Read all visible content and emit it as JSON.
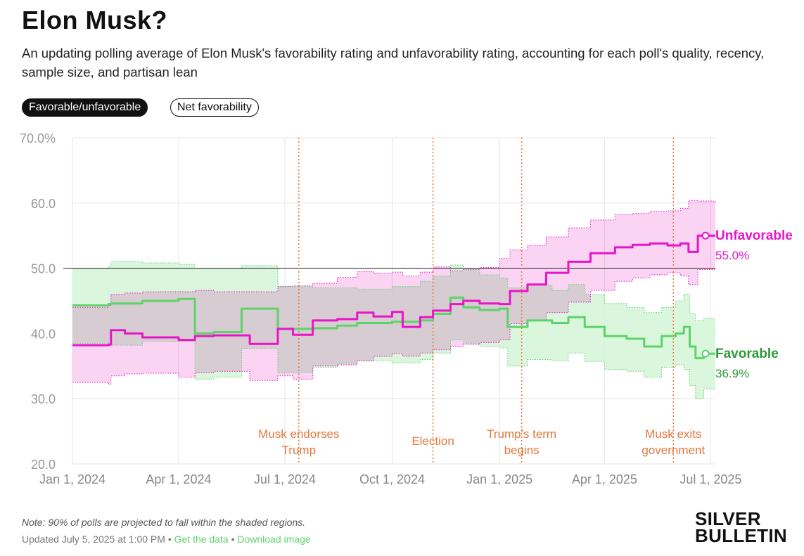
{
  "header": {
    "title": "Elon Musk?",
    "subtitle": "An updating polling average of Elon Musk's favorability rating and unfavorability rating, accounting for each poll's quality, recency, sample size, and partisan lean"
  },
  "toggles": [
    {
      "label": "Favorable/unfavorable",
      "active": true
    },
    {
      "label": "Net favorability",
      "active": false
    }
  ],
  "footer": {
    "note": "Note: 90% of polls are projected to fall within the shaded regions.",
    "updated": "Updated July 5, 2025 at 1:00 PM",
    "get_data": "Get the data",
    "download_image": "Download image",
    "separator": "•",
    "brand_line1": "SILVER",
    "brand_line2": "BULLETIN"
  },
  "colors": {
    "favorable": "#5dd36a",
    "favorable_dark": "#2b9a36",
    "favorable_band": "#d6f5d8",
    "unfavorable": "#e815c8",
    "unfavorable_band": "#f9c2f0",
    "overlap_band": "#dcb8dc",
    "annotation": "#e8763a",
    "grid": "#e6e6e6",
    "axis_text": "#999999"
  },
  "chart_data": {
    "type": "line",
    "ylim": [
      20,
      70
    ],
    "yticks": [
      {
        "value": 70,
        "label": "70.0%"
      },
      {
        "value": 60,
        "label": "60.0"
      },
      {
        "value": 50,
        "label": "50.0"
      },
      {
        "value": 40,
        "label": "40.0"
      },
      {
        "value": 30,
        "label": "30.0"
      },
      {
        "value": 20,
        "label": "20.0"
      }
    ],
    "xlim": [
      "2024-01-01",
      "2025-07-05"
    ],
    "xticks": [
      {
        "date": "2024-01-01",
        "label": "Jan 1, 2024"
      },
      {
        "date": "2024-04-01",
        "label": "Apr 1, 2024"
      },
      {
        "date": "2024-07-01",
        "label": "Jul 1, 2024"
      },
      {
        "date": "2024-10-01",
        "label": "Oct 1, 2024"
      },
      {
        "date": "2025-01-01",
        "label": "Jan 1, 2025"
      },
      {
        "date": "2025-04-01",
        "label": "Apr 1, 2025"
      },
      {
        "date": "2025-07-01",
        "label": "Jul 1, 2025"
      }
    ],
    "reference_line": 50,
    "annotations": [
      {
        "date": "2024-07-13",
        "lines": [
          "Musk endorses",
          "Trump"
        ]
      },
      {
        "date": "2024-11-05",
        "lines": [
          "Election"
        ]
      },
      {
        "date": "2025-01-20",
        "lines": [
          "Trump's term",
          "begins"
        ]
      },
      {
        "date": "2025-05-30",
        "lines": [
          "Musk exits",
          "government"
        ]
      }
    ],
    "series": [
      {
        "name": "Unfavorable",
        "end_label": "55.0%",
        "points": [
          [
            "2024-01-01",
            38.2,
            32.5,
            44.0
          ],
          [
            "2024-02-01",
            38.3,
            32.2,
            44.3
          ],
          [
            "2024-02-03",
            40.5,
            33.5,
            46.0
          ],
          [
            "2024-02-15",
            40.0,
            33.8,
            46.2
          ],
          [
            "2024-03-01",
            39.4,
            33.9,
            46.4
          ],
          [
            "2024-04-01",
            39.0,
            33.3,
            46.4
          ],
          [
            "2024-04-15",
            39.6,
            34.0,
            46.6
          ],
          [
            "2024-05-01",
            39.7,
            34.2,
            46.4
          ],
          [
            "2024-06-01",
            38.4,
            32.8,
            46.4
          ],
          [
            "2024-06-25",
            40.7,
            33.5,
            47.2
          ],
          [
            "2024-07-08",
            39.8,
            33.0,
            47.3
          ],
          [
            "2024-07-25",
            42.0,
            35.0,
            47.7
          ],
          [
            "2024-08-15",
            42.2,
            35.2,
            48.6
          ],
          [
            "2024-09-01",
            43.2,
            35.8,
            49.5
          ],
          [
            "2024-09-15",
            42.6,
            36.5,
            49.2
          ],
          [
            "2024-10-01",
            43.3,
            36.9,
            49.4
          ],
          [
            "2024-10-10",
            41.0,
            36.5,
            48.8
          ],
          [
            "2024-10-25",
            42.5,
            37.0,
            49.4
          ],
          [
            "2024-11-05",
            43.5,
            37.5,
            50.2
          ],
          [
            "2024-11-20",
            44.5,
            38.0,
            49.6
          ],
          [
            "2024-12-01",
            45.0,
            38.3,
            49.8
          ],
          [
            "2024-12-15",
            44.6,
            38.6,
            50.1
          ],
          [
            "2025-01-01",
            44.5,
            39.0,
            51.5
          ],
          [
            "2025-01-10",
            46.5,
            41.5,
            52.8
          ],
          [
            "2025-01-25",
            47.5,
            42.0,
            53.5
          ],
          [
            "2025-02-10",
            49.3,
            43.2,
            54.8
          ],
          [
            "2025-03-01",
            51.0,
            44.8,
            56.2
          ],
          [
            "2025-03-20",
            52.3,
            46.6,
            57.4
          ],
          [
            "2025-04-10",
            53.2,
            48.0,
            58.2
          ],
          [
            "2025-04-25",
            53.6,
            48.5,
            58.4
          ],
          [
            "2025-05-10",
            53.8,
            49.0,
            58.7
          ],
          [
            "2025-05-25",
            53.5,
            49.3,
            58.8
          ],
          [
            "2025-06-05",
            53.8,
            48.8,
            59.2
          ],
          [
            "2025-06-12",
            52.5,
            47.5,
            60.4
          ],
          [
            "2025-06-20",
            55.0,
            49.8,
            60.3
          ],
          [
            "2025-07-05",
            55.0,
            49.8,
            60.1
          ]
        ]
      },
      {
        "name": "Favorable",
        "end_label": "36.9%",
        "points": [
          [
            "2024-01-01",
            44.3,
            38.5,
            50.0
          ],
          [
            "2024-02-01",
            44.5,
            38.7,
            50.3
          ],
          [
            "2024-02-03",
            44.6,
            38.2,
            51.0
          ],
          [
            "2024-03-01",
            45.0,
            38.8,
            50.8
          ],
          [
            "2024-04-01",
            45.3,
            38.8,
            50.6
          ],
          [
            "2024-04-15",
            40.0,
            33.0,
            50.0
          ],
          [
            "2024-05-01",
            40.2,
            33.3,
            50.0
          ],
          [
            "2024-05-25",
            43.8,
            37.7,
            50.4
          ],
          [
            "2024-06-25",
            40.7,
            34.0,
            47.2
          ],
          [
            "2024-07-25",
            40.8,
            34.8,
            47.0
          ],
          [
            "2024-08-15",
            41.2,
            35.4,
            47.0
          ],
          [
            "2024-09-01",
            41.6,
            35.8,
            46.8
          ],
          [
            "2024-10-01",
            41.8,
            35.5,
            47.2
          ],
          [
            "2024-10-25",
            42.0,
            36.0,
            48.0
          ],
          [
            "2024-11-05",
            43.0,
            37.0,
            48.8
          ],
          [
            "2024-11-20",
            45.5,
            39.0,
            50.5
          ],
          [
            "2024-12-01",
            44.0,
            38.5,
            50.0
          ],
          [
            "2024-12-15",
            43.6,
            38.0,
            49.0
          ],
          [
            "2025-01-01",
            43.8,
            37.8,
            48.5
          ],
          [
            "2025-01-08",
            41.0,
            35.0,
            47.0
          ],
          [
            "2025-01-25",
            42.0,
            36.0,
            47.4
          ],
          [
            "2025-02-15",
            41.6,
            35.8,
            46.6
          ],
          [
            "2025-03-01",
            42.5,
            37.0,
            47.5
          ],
          [
            "2025-03-15",
            41.0,
            35.7,
            46.0
          ],
          [
            "2025-04-01",
            39.6,
            34.5,
            44.6
          ],
          [
            "2025-04-20",
            39.2,
            34.2,
            44.0
          ],
          [
            "2025-05-05",
            38.0,
            33.3,
            43.2
          ],
          [
            "2025-05-20",
            39.6,
            34.8,
            44.0
          ],
          [
            "2025-06-01",
            40.0,
            35.2,
            45.0
          ],
          [
            "2025-06-08",
            41.0,
            34.5,
            46.0
          ],
          [
            "2025-06-13",
            38.0,
            32.0,
            43.0
          ],
          [
            "2025-06-18",
            36.2,
            30.0,
            42.0
          ],
          [
            "2025-06-25",
            36.9,
            31.5,
            42.3
          ],
          [
            "2025-07-05",
            36.9,
            31.5,
            42.3
          ]
        ]
      }
    ]
  }
}
